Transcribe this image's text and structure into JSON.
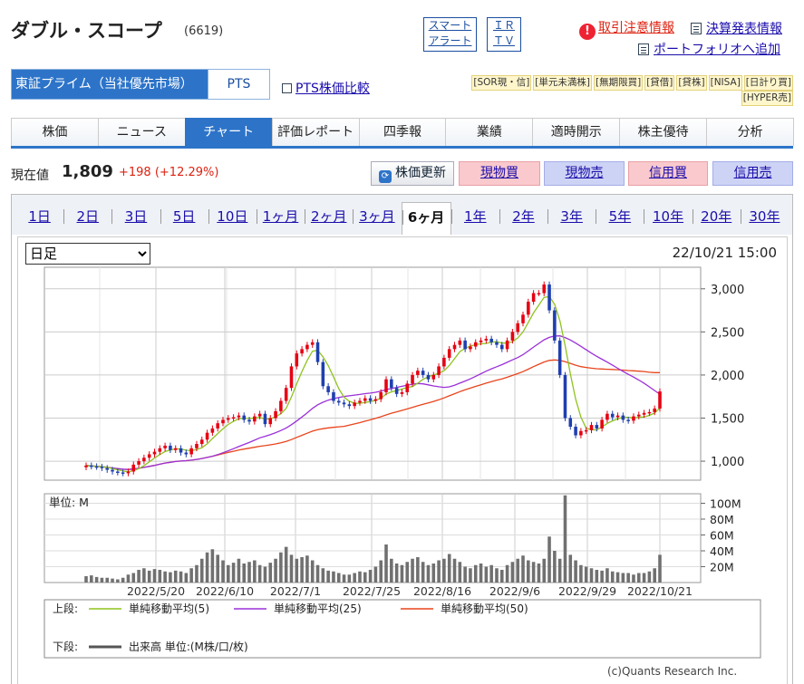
{
  "header": {
    "company": "ダブル・スコープ",
    "code": "(6619)",
    "smart_alert_1": "スマート",
    "smart_alert_2": "アラート",
    "irtv_1": "ＩＲ",
    "irtv_2": "ＴＶ",
    "notice_link": "取引注意情報",
    "earnings_link": "決算発表情報",
    "portfolio_link": "ポートフォリオへ追加"
  },
  "market": {
    "selected": "東証プライム（当社優先市場）",
    "pts": "PTS",
    "pts_compare": "PTS株価比較"
  },
  "badges": [
    "[SOR現・信]",
    "[単元未満株]",
    "[無期限買]",
    "[貸借]",
    "[貸株]",
    "[NISA]",
    "[日計り買]",
    "[HYPER売]"
  ],
  "tabs": [
    "株価",
    "ニュース",
    "チャート",
    "評価レポート",
    "四季報",
    "業績",
    "適時開示",
    "株主優待",
    "分析"
  ],
  "active_tab": 2,
  "quote": {
    "label": "現在値",
    "price": "1,809",
    "change": "+198 (+12.29%)"
  },
  "actions": {
    "refresh": "株価更新",
    "cash_buy": "現物買",
    "cash_sell": "現物売",
    "margin_buy": "信用買",
    "margin_sell": "信用売"
  },
  "periods": [
    "1日",
    "2日",
    "3日",
    "5日",
    "10日",
    "1ヶ月",
    "2ヶ月",
    "3ヶ月",
    "6ヶ月",
    "1年",
    "2年",
    "3年",
    "5年",
    "10年",
    "20年",
    "30年"
  ],
  "active_period": 8,
  "frequency": "日足",
  "timestamp": "22/10/21 15:00",
  "colors": {
    "up": "#e60012",
    "down": "#1f3fb0",
    "ma5": "#8fc31f",
    "ma25": "#9b30d8",
    "ma50": "#e8441c",
    "volume": "#707070"
  },
  "chart_data": {
    "type": "candlestick",
    "x_ticks": [
      "2022/5/20",
      "2022/6/10",
      "2022/7/1",
      "2022/7/25",
      "2022/8/16",
      "2022/9/6",
      "2022/9/29",
      "2022/10/21"
    ],
    "price_ticks": [
      "3,000",
      "2,500",
      "2,000",
      "1,500",
      "1,000"
    ],
    "price_tick_values": [
      3000,
      2500,
      2000,
      1500,
      1000
    ],
    "ylim": [
      780,
      3250
    ],
    "volume_ticks": [
      "100M",
      "80M",
      "60M",
      "40M",
      "20M"
    ],
    "volume_tick_values": [
      100,
      80,
      60,
      40,
      20
    ],
    "volume_ylim": [
      0,
      112
    ],
    "volume_label": "単位: M",
    "legend_upper_label": "上段:",
    "legend_lower_label": "下段:",
    "legend": [
      "単純移動平均(5)",
      "単純移動平均(25)",
      "単純移動平均(50)"
    ],
    "volume_legend": "出来高 単位:(M株/口/枚)",
    "copyright": "(c)Quants Research Inc.",
    "closes": [
      950,
      940,
      935,
      920,
      900,
      880,
      870,
      860,
      880,
      960,
      1000,
      1040,
      1080,
      1110,
      1150,
      1180,
      1130,
      1150,
      1100,
      1080,
      1150,
      1200,
      1250,
      1330,
      1380,
      1440,
      1480,
      1500,
      1510,
      1530,
      1480,
      1460,
      1520,
      1550,
      1430,
      1500,
      1580,
      1700,
      1850,
      2100,
      2250,
      2300,
      2350,
      2380,
      2150,
      1870,
      1800,
      1700,
      1680,
      1660,
      1640,
      1680,
      1700,
      1730,
      1700,
      1720,
      1800,
      1950,
      1850,
      1780,
      1800,
      1900,
      2000,
      2050,
      2000,
      1950,
      2000,
      2100,
      2200,
      2300,
      2350,
      2400,
      2300,
      2330,
      2380,
      2400,
      2420,
      2380,
      2350,
      2300,
      2400,
      2500,
      2600,
      2700,
      2850,
      2950,
      2950,
      3050,
      2750,
      2400,
      2000,
      1500,
      1400,
      1300,
      1350,
      1360,
      1420,
      1380,
      1480,
      1550,
      1510,
      1530,
      1480,
      1470,
      1520,
      1540,
      1560,
      1570,
      1611,
      1809
    ],
    "volumes": [
      8,
      9,
      7,
      6,
      6,
      5,
      4,
      6,
      10,
      12,
      16,
      18,
      15,
      17,
      16,
      14,
      13,
      15,
      14,
      12,
      18,
      22,
      30,
      38,
      42,
      35,
      28,
      22,
      25,
      30,
      24,
      26,
      28,
      22,
      20,
      25,
      30,
      38,
      45,
      35,
      30,
      32,
      34,
      28,
      22,
      18,
      15,
      14,
      12,
      10,
      10,
      12,
      14,
      13,
      16,
      20,
      28,
      48,
      30,
      24,
      22,
      26,
      30,
      32,
      26,
      22,
      24,
      28,
      30,
      36,
      30,
      26,
      20,
      18,
      22,
      24,
      20,
      22,
      18,
      16,
      22,
      26,
      30,
      34,
      28,
      26,
      24,
      30,
      58,
      40,
      30,
      110,
      35,
      28,
      22,
      20,
      18,
      16,
      15,
      18,
      14,
      13,
      12,
      12,
      10,
      12,
      12,
      14,
      18,
      35
    ],
    "dates_count": 110
  }
}
